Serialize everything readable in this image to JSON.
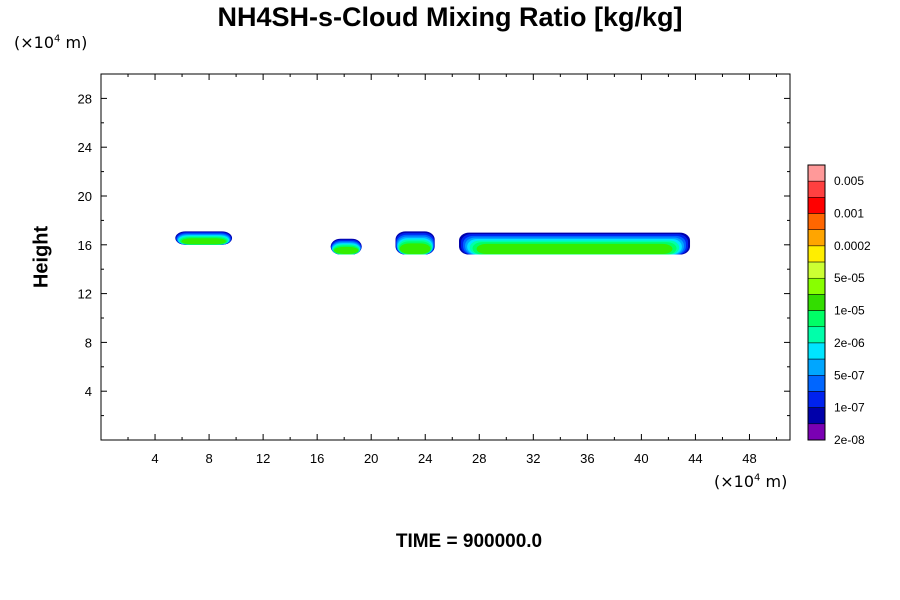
{
  "chart_data": {
    "type": "contour",
    "title": "NH4SH-s-Cloud Mixing Ratio [kg/kg]",
    "ylabel": "Height",
    "x_unit": {
      "prefix": "(×10",
      "exp": "4",
      "suffix": " m)"
    },
    "y_unit": {
      "prefix": "(×10",
      "exp": "4",
      "suffix": " m)"
    },
    "xlim": [
      0,
      51
    ],
    "ylim": [
      0,
      30
    ],
    "x_ticks": [
      4,
      8,
      12,
      16,
      20,
      24,
      28,
      32,
      36,
      40,
      44,
      48
    ],
    "y_ticks": [
      4,
      8,
      12,
      16,
      20,
      24,
      28
    ],
    "time_label": "TIME = 900000.0",
    "colorbar": {
      "labels": [
        "0.005",
        "0.001",
        "0.0002",
        "5e-05",
        "1e-05",
        "2e-06",
        "5e-07",
        "1e-07",
        "2e-08"
      ],
      "colors": [
        "#ff9999",
        "#ff4040",
        "#ff0000",
        "#ff6600",
        "#ffa500",
        "#ffee00",
        "#ccff33",
        "#88ff00",
        "#33dd00",
        "#00ff66",
        "#00ffaa",
        "#00e5ff",
        "#00a6ff",
        "#0066ff",
        "#0022ee",
        "#0000aa",
        "#7a00b3"
      ]
    },
    "clouds": [
      {
        "x_start": 5.5,
        "x_end": 9.7,
        "y_bottom": 16.0,
        "y_top": 17.1
      },
      {
        "x_start": 17.0,
        "x_end": 19.3,
        "y_bottom": 15.2,
        "y_top": 16.5
      },
      {
        "x_start": 21.8,
        "x_end": 24.7,
        "y_bottom": 15.2,
        "y_top": 17.1
      },
      {
        "x_start": 26.5,
        "x_end": 43.6,
        "y_bottom": 15.2,
        "y_top": 17.0
      }
    ]
  }
}
